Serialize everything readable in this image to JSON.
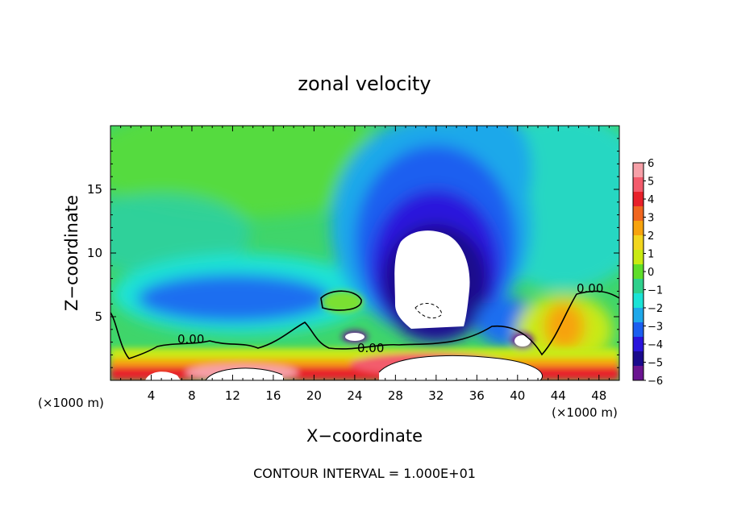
{
  "chart_data": {
    "type": "heatmap",
    "title": "zonal velocity",
    "xlabel": "X−coordinate",
    "ylabel": "Z−coordinate",
    "x_unit_left": "(×1000 m)",
    "x_unit_right": "(×1000 m)",
    "footer": "CONTOUR INTERVAL = 1.000E+01",
    "xlim": [
      0,
      50
    ],
    "ylim": [
      0,
      20
    ],
    "x_ticks": [
      4,
      8,
      12,
      16,
      20,
      24,
      28,
      32,
      36,
      40,
      44,
      48
    ],
    "y_ticks": [
      5,
      10,
      15
    ],
    "contour_labels": [
      {
        "text": "0.00",
        "x": 8.2,
        "y": 3.2
      },
      {
        "text": "0.00",
        "x": 25.0,
        "y": 2.6
      },
      {
        "text": "0.00",
        "x": 47.0,
        "y": 7.0
      }
    ],
    "colorbar": {
      "levels": [
        "6",
        "5",
        "4",
        "3",
        "2",
        "1",
        "0",
        "−1",
        "−2",
        "−3",
        "−4",
        "−5",
        "−6"
      ],
      "colors": [
        "#f6a0a8",
        "#f35b6c",
        "#e8202a",
        "#f0661f",
        "#f7a30e",
        "#f2d61e",
        "#c9ea12",
        "#5ede2a",
        "#2ed08c",
        "#1be3d6",
        "#1ea8ea",
        "#1b5ef0",
        "#2a14dc",
        "#1a0a8c",
        "#6a1490"
      ]
    },
    "colormap": [
      "#6a1490",
      "#1a0a8c",
      "#2a14dc",
      "#1b5ef0",
      "#1ea8ea",
      "#1be3d6",
      "#2ed08c",
      "#5ede2a",
      "#c9ea12",
      "#f2d61e",
      "#f7a30e",
      "#f0661f",
      "#e8202a",
      "#f35b6c",
      "#f6a0a8"
    ]
  }
}
